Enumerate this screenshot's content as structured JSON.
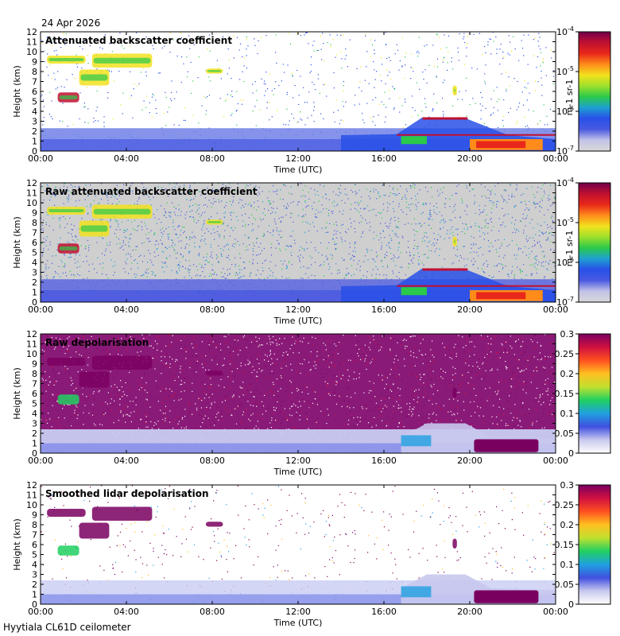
{
  "date_label": "24 Apr 2026",
  "footer": "Hyytiala CL61D ceilometer",
  "colors": {
    "backscatter_scale": [
      "#d8d8d8",
      "#c2c2e8",
      "#4a5ae0",
      "#2850e8",
      "#1ea0d0",
      "#2bc94a",
      "#9ce02c",
      "#f2e21e",
      "#ff8c1a",
      "#e8281a",
      "#c01030",
      "#70004a"
    ],
    "depol_scale": [
      "#ffffff",
      "#c8c8ee",
      "#4050e0",
      "#20a0e0",
      "#20d060",
      "#c0e030",
      "#ffc020",
      "#ff5020",
      "#d01040",
      "#7a0060"
    ]
  },
  "chart_data": [
    {
      "type": "heatmap",
      "title": "Attenuated backscatter coefficient",
      "xlabel": "Time (UTC)",
      "ylabel": "Height (km)",
      "x_ticks": [
        "00:00",
        "04:00",
        "08:00",
        "12:00",
        "16:00",
        "20:00",
        "00:00"
      ],
      "y_ticks": [
        "0",
        "1",
        "2",
        "3",
        "4",
        "5",
        "6",
        "7",
        "8",
        "9",
        "10",
        "11",
        "12"
      ],
      "ylim": [
        0,
        12
      ],
      "colorbar": {
        "scale": "log",
        "ticks": [
          "10-7",
          "10-6",
          "10-5",
          "10-4"
        ],
        "unit": "m-1 sr-1"
      },
      "features": [
        {
          "time_start": 0.0,
          "time_end": 24.0,
          "height_bottom": 0.0,
          "height_top": 2.3,
          "level": "weak boundary layer"
        },
        {
          "time_start": 0.3,
          "time_end": 2.1,
          "height_bottom": 8.7,
          "height_top": 9.7,
          "level": "cloud"
        },
        {
          "time_start": 1.8,
          "time_end": 5.2,
          "height_bottom": 6.5,
          "height_top": 9.8,
          "level": "cloud"
        },
        {
          "time_start": 0.7,
          "time_end": 1.8,
          "height_bottom": 4.9,
          "height_top": 5.8,
          "level": "cloud"
        },
        {
          "time_start": 16.7,
          "time_end": 24.0,
          "height_bottom": 0.0,
          "height_top": 2.2,
          "level": "low cloud and precipitation"
        }
      ]
    },
    {
      "type": "heatmap",
      "title": "Raw attenuated backscatter coefficient",
      "xlabel": "Time (UTC)",
      "ylabel": "Height (km)",
      "x_ticks": [
        "00:00",
        "04:00",
        "08:00",
        "12:00",
        "16:00",
        "20:00",
        "00:00"
      ],
      "y_ticks": [
        "0",
        "1",
        "2",
        "3",
        "4",
        "5",
        "6",
        "7",
        "8",
        "9",
        "10",
        "11",
        "12"
      ],
      "ylim": [
        0,
        12
      ],
      "colorbar": {
        "scale": "log",
        "ticks": [
          "10-7",
          "10-6",
          "10-5",
          "10-4"
        ],
        "unit": "m-1 sr-1"
      }
    },
    {
      "type": "heatmap",
      "title": "Raw depolarisation",
      "xlabel": "Time (UTC)",
      "ylabel": "Height (km)",
      "x_ticks": [
        "00:00",
        "04:00",
        "08:00",
        "12:00",
        "16:00",
        "20:00",
        "00:00"
      ],
      "y_ticks": [
        "0",
        "1",
        "2",
        "3",
        "4",
        "5",
        "6",
        "7",
        "8",
        "9",
        "10",
        "11",
        "12"
      ],
      "ylim": [
        0,
        12
      ],
      "colorbar": {
        "scale": "linear",
        "ticks": [
          "0",
          "0.05",
          "0.1",
          "0.15",
          "0.2",
          "0.25",
          "0.3"
        ],
        "range": [
          0,
          0.3
        ]
      }
    },
    {
      "type": "heatmap",
      "title": "Smoothed lidar depolarisation",
      "xlabel": "Time (UTC)",
      "ylabel": "Height (km)",
      "x_ticks": [
        "00:00",
        "04:00",
        "08:00",
        "12:00",
        "16:00",
        "20:00",
        "00:00"
      ],
      "y_ticks": [
        "0",
        "1",
        "2",
        "3",
        "4",
        "5",
        "6",
        "7",
        "8",
        "9",
        "10",
        "11",
        "12"
      ],
      "ylim": [
        0,
        12
      ],
      "colorbar": {
        "scale": "linear",
        "ticks": [
          "0",
          "0.05",
          "0.1",
          "0.15",
          "0.2",
          "0.25",
          "0.3"
        ],
        "range": [
          0,
          0.3
        ]
      }
    }
  ]
}
